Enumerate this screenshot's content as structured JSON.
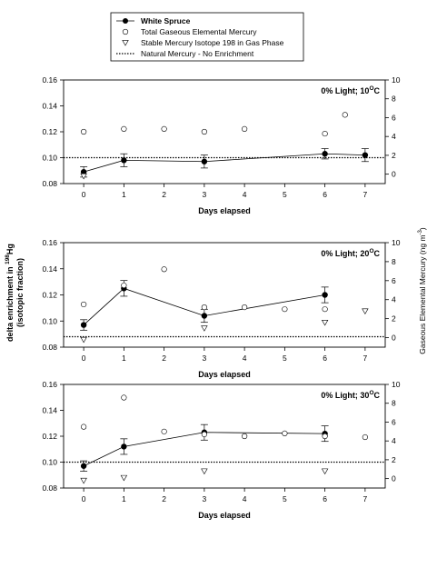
{
  "legend": {
    "items": [
      {
        "label": "White Spruce",
        "marker": "filled-circle-line",
        "bold": true
      },
      {
        "label": "Total Gaseous Elemental Mercury",
        "marker": "open-circle"
      },
      {
        "label": "Stable Mercury Isotope 198 in Gas Phase",
        "marker": "open-triangle-down"
      },
      {
        "label": "Natural Mercury - No Enrichment",
        "marker": "dotted-line"
      }
    ]
  },
  "y_left_label_line1_pre": "delta enrichment in ",
  "y_left_label_line1_sup": "198",
  "y_left_label_line1_post": "Hg",
  "y_left_label_line2": "(isotopic fraction)",
  "y_right_label_pre": "Gaseous Elemental Mercury (ng m",
  "y_right_label_sup": "-3",
  "y_right_label_post": ")",
  "chart_data": [
    {
      "type": "scatter",
      "title_pre": "0% Light; 10",
      "title_sup": "O",
      "title_post": "C",
      "xlabel": "Days elapsed",
      "xlim": [
        -0.5,
        7.5
      ],
      "xticks": [
        0,
        1,
        2,
        3,
        4,
        5,
        6,
        7
      ],
      "ylim_left": [
        0.08,
        0.16
      ],
      "yticks_left": [
        "0.08",
        "0.10",
        "0.12",
        "0.14",
        "0.16"
      ],
      "ylim_right": [
        -1,
        10
      ],
      "yticks_right": [
        "0",
        "2",
        "4",
        "6",
        "8",
        "10"
      ],
      "baseline": 0.1,
      "series": [
        {
          "name": "White Spruce",
          "axis": "left",
          "x": [
            0,
            1,
            3,
            6,
            7
          ],
          "y": [
            0.089,
            0.098,
            0.097,
            0.103,
            0.102
          ],
          "err": [
            0.004,
            0.005,
            0.005,
            0.004,
            0.005
          ]
        },
        {
          "name": "Total Gaseous Elemental Mercury",
          "axis": "right",
          "x": [
            0,
            1,
            2,
            3,
            4,
            6,
            6.5
          ],
          "y": [
            4.5,
            4.8,
            4.8,
            4.5,
            4.8,
            4.3,
            6.3
          ]
        },
        {
          "name": "Stable Mercury Isotope 198 in Gas Phase",
          "axis": "right",
          "x": [
            0
          ],
          "y": [
            0.0
          ]
        }
      ]
    },
    {
      "type": "scatter",
      "title_pre": "0% Light; 20",
      "title_sup": "O",
      "title_post": "C",
      "xlabel": "Days elapsed",
      "xlim": [
        -0.5,
        7.5
      ],
      "xticks": [
        0,
        1,
        2,
        3,
        4,
        5,
        6,
        7
      ],
      "ylim_left": [
        0.08,
        0.16
      ],
      "yticks_left": [
        "0.08",
        "0.10",
        "0.12",
        "0.14",
        "0.16"
      ],
      "ylim_right": [
        -1,
        10
      ],
      "yticks_right": [
        "0",
        "2",
        "4",
        "6",
        "8",
        "10"
      ],
      "baseline": 0.088,
      "series": [
        {
          "name": "White Spruce",
          "axis": "left",
          "x": [
            0,
            1,
            3,
            6
          ],
          "y": [
            0.097,
            0.125,
            0.104,
            0.12
          ],
          "err": [
            0.004,
            0.006,
            0.005,
            0.006
          ]
        },
        {
          "name": "Total Gaseous Elemental Mercury",
          "axis": "right",
          "x": [
            0,
            1,
            2,
            3,
            4,
            5,
            6
          ],
          "y": [
            3.5,
            5.5,
            7.2,
            3.2,
            3.2,
            3.0,
            3.0
          ]
        },
        {
          "name": "Stable Mercury Isotope 198 in Gas Phase",
          "axis": "right",
          "x": [
            0,
            3,
            6,
            7
          ],
          "y": [
            0.0,
            1.2,
            1.8,
            3.0
          ]
        }
      ]
    },
    {
      "type": "scatter",
      "title_pre": "0% Light; 30",
      "title_sup": "O",
      "title_post": "C",
      "xlabel": "Days elapsed",
      "xlim": [
        -0.5,
        7.5
      ],
      "xticks": [
        0,
        1,
        2,
        3,
        4,
        5,
        6,
        7
      ],
      "ylim_left": [
        0.08,
        0.16
      ],
      "yticks_left": [
        "0.08",
        "0.10",
        "0.12",
        "0.14",
        "0.16"
      ],
      "ylim_right": [
        -1,
        10
      ],
      "yticks_right": [
        "0",
        "2",
        "4",
        "6",
        "8",
        "10"
      ],
      "baseline": 0.1,
      "series": [
        {
          "name": "White Spruce",
          "axis": "left",
          "x": [
            0,
            1,
            3,
            6
          ],
          "y": [
            0.097,
            0.112,
            0.123,
            0.122
          ],
          "err": [
            0.004,
            0.006,
            0.006,
            0.006
          ]
        },
        {
          "name": "Total Gaseous Elemental Mercury",
          "axis": "right",
          "x": [
            0,
            1,
            2,
            3,
            4,
            5,
            6,
            7
          ],
          "y": [
            5.5,
            8.6,
            5.0,
            4.7,
            4.5,
            4.8,
            4.5,
            4.4
          ]
        },
        {
          "name": "Stable Mercury Isotope 198 in Gas Phase",
          "axis": "right",
          "x": [
            0,
            1,
            3,
            6
          ],
          "y": [
            0.0,
            0.3,
            1.0,
            1.0
          ]
        }
      ]
    }
  ]
}
